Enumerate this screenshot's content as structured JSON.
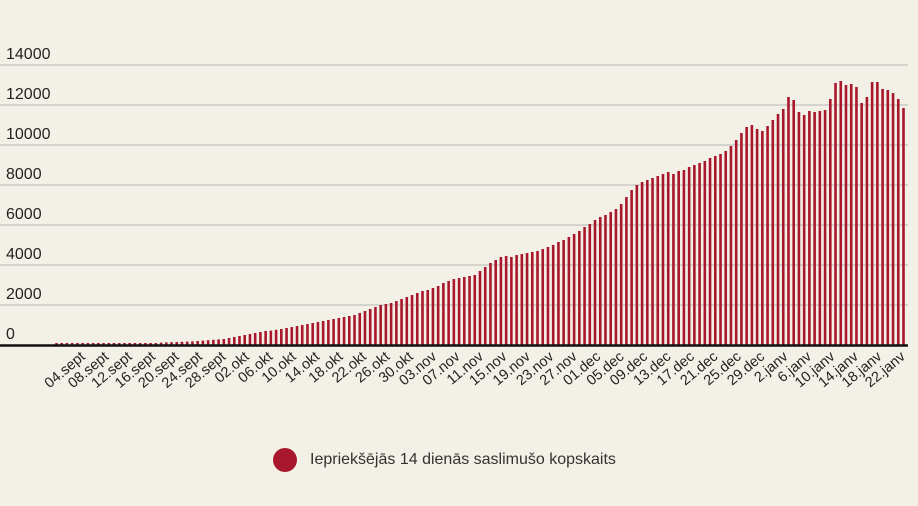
{
  "colors": {
    "background": "#f3f1e7",
    "bar": "#a8172c",
    "gridline": "#b7b7b7",
    "axis": "#111111",
    "text": "#222222"
  },
  "legend": {
    "label": "Iepriekšējās 14 dienās saslimušo kopskaits",
    "icon": "filled-circle",
    "placement": "bottom-center"
  },
  "chart_data": {
    "type": "bar",
    "title": "",
    "xlabel": "",
    "ylabel": "",
    "ylim": [
      0,
      14000
    ],
    "yticks": [
      0,
      2000,
      4000,
      6000,
      8000,
      10000,
      12000,
      14000
    ],
    "grid": true,
    "tick_labels": [
      "04.sept",
      "08.sept",
      "12.sept",
      "16.sept",
      "20.sept",
      "24.sept",
      "28.sept",
      "02.okt",
      "06.okt",
      "10.okt",
      "14.okt",
      "18.okt",
      "22.okt",
      "26.okt",
      "30.okt",
      "03.nov",
      "07.nov",
      "11.nov",
      "15.nov",
      "19.nov",
      "23.nov",
      "27.nov",
      "01.dec",
      "05.dec",
      "09.dec",
      "13.dec",
      "17.dec",
      "21.dec",
      "25.dec",
      "29.dec",
      "2.janv",
      "6.janv",
      "10.janv",
      "14.janv",
      "18.janv",
      "22.janv"
    ],
    "series": [
      {
        "name": "Iepriekšējās 14 dienās saslimušo kopskaits",
        "values": [
          100,
          100,
          100,
          100,
          100,
          100,
          100,
          100,
          100,
          100,
          100,
          100,
          100,
          100,
          100,
          100,
          100,
          100,
          100,
          100,
          120,
          130,
          140,
          150,
          160,
          170,
          180,
          200,
          220,
          240,
          260,
          280,
          300,
          350,
          400,
          450,
          500,
          550,
          600,
          650,
          700,
          720,
          760,
          800,
          850,
          900,
          950,
          1000,
          1050,
          1100,
          1150,
          1200,
          1250,
          1300,
          1350,
          1400,
          1450,
          1500,
          1600,
          1700,
          1800,
          1900,
          2000,
          2050,
          2100,
          2200,
          2300,
          2400,
          2500,
          2600,
          2700,
          2750,
          2850,
          2950,
          3100,
          3200,
          3300,
          3350,
          3400,
          3450,
          3500,
          3700,
          3900,
          4100,
          4250,
          4400,
          4450,
          4400,
          4500,
          4550,
          4600,
          4650,
          4700,
          4800,
          4900,
          5000,
          5150,
          5250,
          5400,
          5550,
          5700,
          5900,
          6050,
          6250,
          6400,
          6500,
          6650,
          6800,
          7050,
          7400,
          7750,
          8000,
          8150,
          8250,
          8350,
          8450,
          8550,
          8650,
          8550,
          8700,
          8750,
          8900,
          9000,
          9100,
          9200,
          9350,
          9450,
          9550,
          9700,
          9950,
          10250,
          10600,
          10900,
          11000,
          10800,
          10700,
          10950,
          11250,
          11550,
          11800,
          12400,
          12250,
          11650,
          11500,
          11700,
          11650,
          11700,
          11750,
          12300,
          13100,
          13200,
          13000,
          13050,
          12900,
          12100,
          12400,
          13150,
          13150,
          12800,
          12750,
          12600,
          12300,
          11850
        ]
      }
    ]
  }
}
